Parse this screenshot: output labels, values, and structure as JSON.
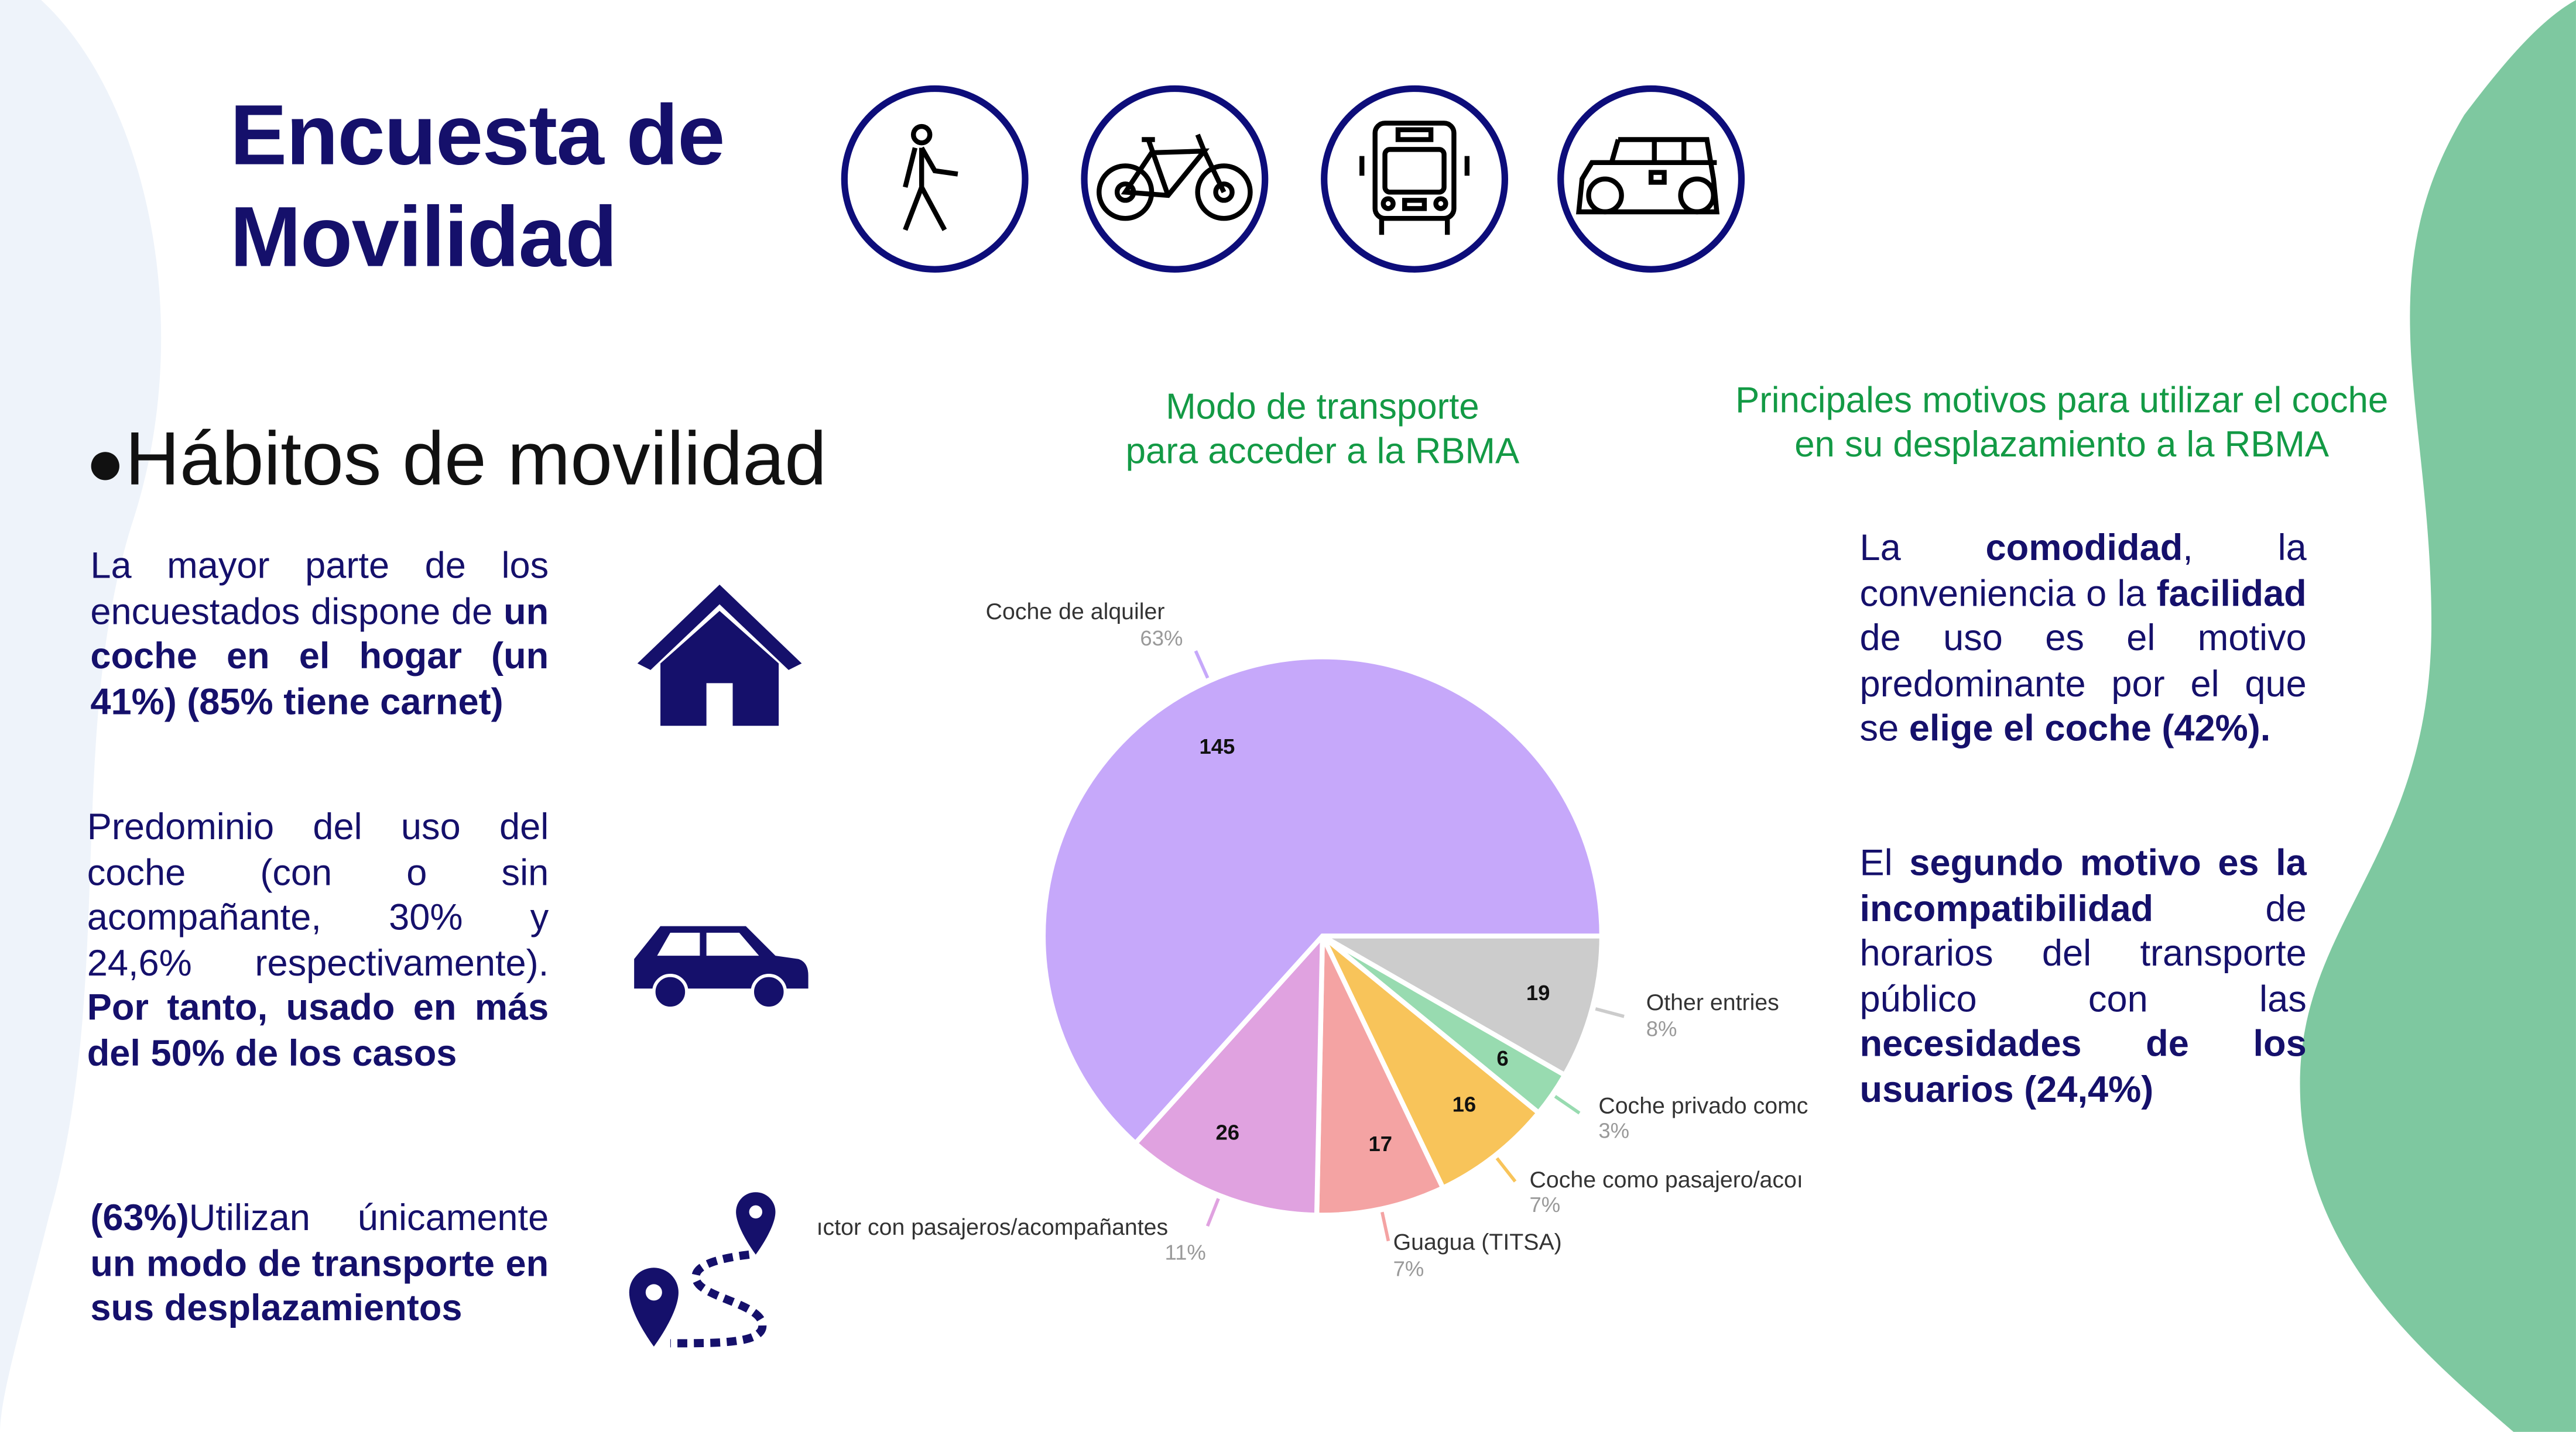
{
  "header": {
    "title_line1": "Encuesta de",
    "title_line2": "Movilidad"
  },
  "transport_icons": [
    "walking-person-icon",
    "bicycle-icon",
    "bus-icon",
    "car-icon"
  ],
  "section_title": "Hábitos de movilidad",
  "left": {
    "p1": {
      "a": "La mayor parte de los encuestados dispone de ",
      "b": "un coche en el hogar (un 41%) (85% tiene carnet)"
    },
    "p2": {
      "a": "Predominio del uso del coche (con o sin acompañante, 30% y 24,6% respectivamente). ",
      "b": "Por tanto, usado en más del 50% de los casos"
    },
    "p3": {
      "b": "(63%)",
      "a": "Utilizan únicamente ",
      "c": "un modo de transporte en sus desplazamientos"
    }
  },
  "chart_title": {
    "line1": "Modo de transporte",
    "line2": "para acceder a la RBMA"
  },
  "chart_data": {
    "type": "pie",
    "title": "Modo de transporte para acceder a la RBMA",
    "slices": [
      {
        "label": "Other entries",
        "value": 19,
        "percent": "8%",
        "color": "#cccccc"
      },
      {
        "label": "Coche privado comc",
        "value": 6,
        "percent": "3%",
        "color": "#98dbb0"
      },
      {
        "label": "Coche como pasajero/acoı",
        "value": 16,
        "percent": "7%",
        "color": "#f8c45a"
      },
      {
        "label": "Guagua (TITSA)",
        "value": 17,
        "percent": "7%",
        "color": "#f4a3a3"
      },
      {
        "label": "ıctor con pasajeros/acompañantes",
        "value": 26,
        "percent": "11%",
        "color": "#e0a2e0"
      },
      {
        "label": "Coche de alquiler",
        "value": 145,
        "percent": "63%",
        "color": "#c6a8fa"
      }
    ]
  },
  "right": {
    "title": "Principales motivos para utilizar el coche en su desplazamiento a la RBMA",
    "p1": {
      "a": "La ",
      "b": "comodidad",
      ",": ", la conveniencia o la ",
      "c": "facilidad",
      "d": " de uso es el motivo predominante por el que se ",
      "e": "elige el coche (42%)."
    },
    "p2": {
      "a": "El ",
      "b": "segundo motivo es la incompatibilidad",
      "c": " de horarios del transporte público con las ",
      "d": "necesidades de los usuarios (24,4%)"
    }
  },
  "colors": {
    "navy": "#15106b",
    "green_title": "#139a45",
    "blob_green": "#7ec8a0",
    "blob_blue": "#eef3fa"
  }
}
